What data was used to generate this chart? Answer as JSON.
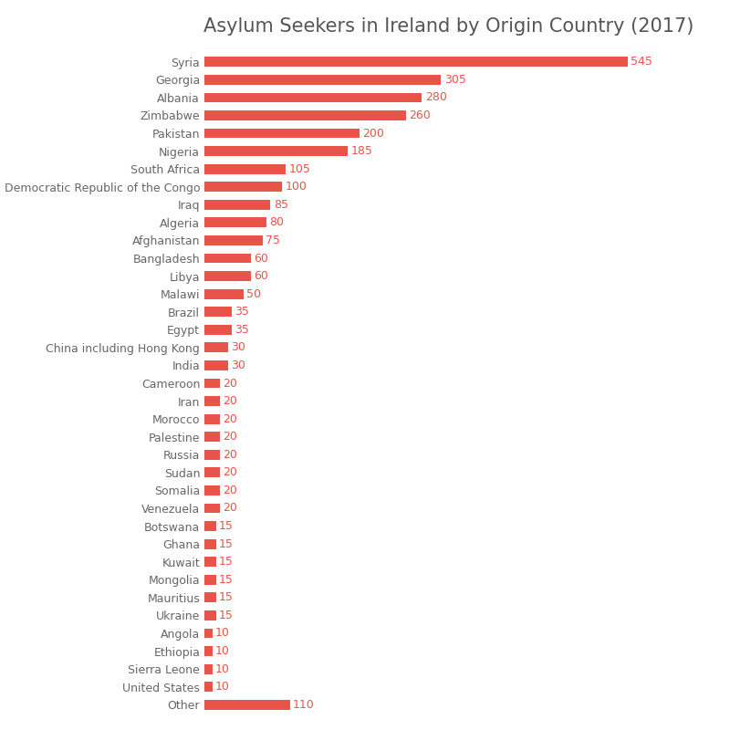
{
  "title": "Asylum Seekers in Ireland by Origin Country (2017)",
  "categories": [
    "Syria",
    "Georgia",
    "Albania",
    "Zimbabwe",
    "Pakistan",
    "Nigeria",
    "South Africa",
    "Democratic Republic of the Congo",
    "Iraq",
    "Algeria",
    "Afghanistan",
    "Bangladesh",
    "Libya",
    "Malawi",
    "Brazil",
    "Egypt",
    "China including Hong Kong",
    "India",
    "Cameroon",
    "Iran",
    "Morocco",
    "Palestine",
    "Russia",
    "Sudan",
    "Somalia",
    "Venezuela",
    "Botswana",
    "Ghana",
    "Kuwait",
    "Mongolia",
    "Mauritius",
    "Ukraine",
    "Angola",
    "Ethiopia",
    "Sierra Leone",
    "United States",
    "Other"
  ],
  "values": [
    545,
    305,
    280,
    260,
    200,
    185,
    105,
    100,
    85,
    80,
    75,
    60,
    60,
    50,
    35,
    35,
    30,
    30,
    20,
    20,
    20,
    20,
    20,
    20,
    20,
    20,
    15,
    15,
    15,
    15,
    15,
    15,
    10,
    10,
    10,
    10,
    110
  ],
  "bar_color": "#e8534a",
  "label_color": "#e8534a",
  "title_color": "#555555",
  "tick_label_color": "#666666",
  "background_color": "#ffffff",
  "label_fontsize": 9,
  "title_fontsize": 15,
  "tick_fontsize": 9
}
